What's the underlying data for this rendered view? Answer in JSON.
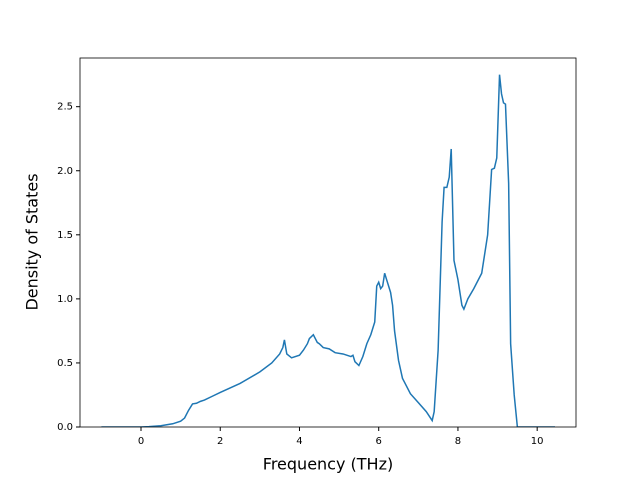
{
  "chart_data": {
    "type": "line",
    "xlabel": "Frequency (THz)",
    "ylabel": "Density of States",
    "color": "#1f77b4",
    "xlim": [
      -1.54,
      10.98
    ],
    "ylim": [
      0,
      2.88
    ],
    "xticks": [
      0,
      2,
      4,
      6,
      8,
      10
    ],
    "yticks": [
      {
        "value": 0,
        "label": "0.0"
      },
      0.5,
      {
        "value": 1,
        "label": "1.0"
      },
      1.5,
      {
        "value": 2,
        "label": "2.0"
      },
      2.5
    ],
    "x": [
      -1.0,
      -0.5,
      0.0,
      0.2,
      0.5,
      0.8,
      1.0,
      1.1,
      1.2,
      1.3,
      1.4,
      1.5,
      1.6,
      1.8,
      2.0,
      2.5,
      3.0,
      3.3,
      3.5,
      3.58,
      3.62,
      3.68,
      3.8,
      4.0,
      4.1,
      4.2,
      4.25,
      4.35,
      4.45,
      4.5,
      4.6,
      4.75,
      4.9,
      5.1,
      5.3,
      5.35,
      5.4,
      5.5,
      5.6,
      5.7,
      5.8,
      5.9,
      5.95,
      6.0,
      6.05,
      6.1,
      6.15,
      6.2,
      6.3,
      6.35,
      6.4,
      6.5,
      6.6,
      6.8,
      7.0,
      7.2,
      7.35,
      7.4,
      7.5,
      7.6,
      7.65,
      7.72,
      7.78,
      7.83,
      7.9,
      8.0,
      8.1,
      8.15,
      8.25,
      8.4,
      8.6,
      8.75,
      8.85,
      8.92,
      8.98,
      9.05,
      9.1,
      9.15,
      9.2,
      9.28,
      9.33,
      9.42,
      9.5,
      10.0,
      10.45
    ],
    "values": [
      0,
      0,
      0,
      0.003,
      0.01,
      0.025,
      0.045,
      0.07,
      0.13,
      0.18,
      0.185,
      0.2,
      0.21,
      0.24,
      0.27,
      0.34,
      0.43,
      0.5,
      0.57,
      0.62,
      0.68,
      0.57,
      0.54,
      0.56,
      0.6,
      0.65,
      0.69,
      0.72,
      0.66,
      0.65,
      0.62,
      0.61,
      0.58,
      0.57,
      0.55,
      0.56,
      0.51,
      0.48,
      0.55,
      0.65,
      0.72,
      0.82,
      1.1,
      1.13,
      1.08,
      1.1,
      1.2,
      1.15,
      1.05,
      0.95,
      0.75,
      0.52,
      0.38,
      0.26,
      0.19,
      0.12,
      0.05,
      0.12,
      0.6,
      1.6,
      1.87,
      1.87,
      1.95,
      2.17,
      1.3,
      1.15,
      0.95,
      0.92,
      1.0,
      1.08,
      1.2,
      1.5,
      2.01,
      2.02,
      2.1,
      2.75,
      2.6,
      2.53,
      2.52,
      1.9,
      0.65,
      0.25,
      0,
      0,
      0
    ]
  }
}
